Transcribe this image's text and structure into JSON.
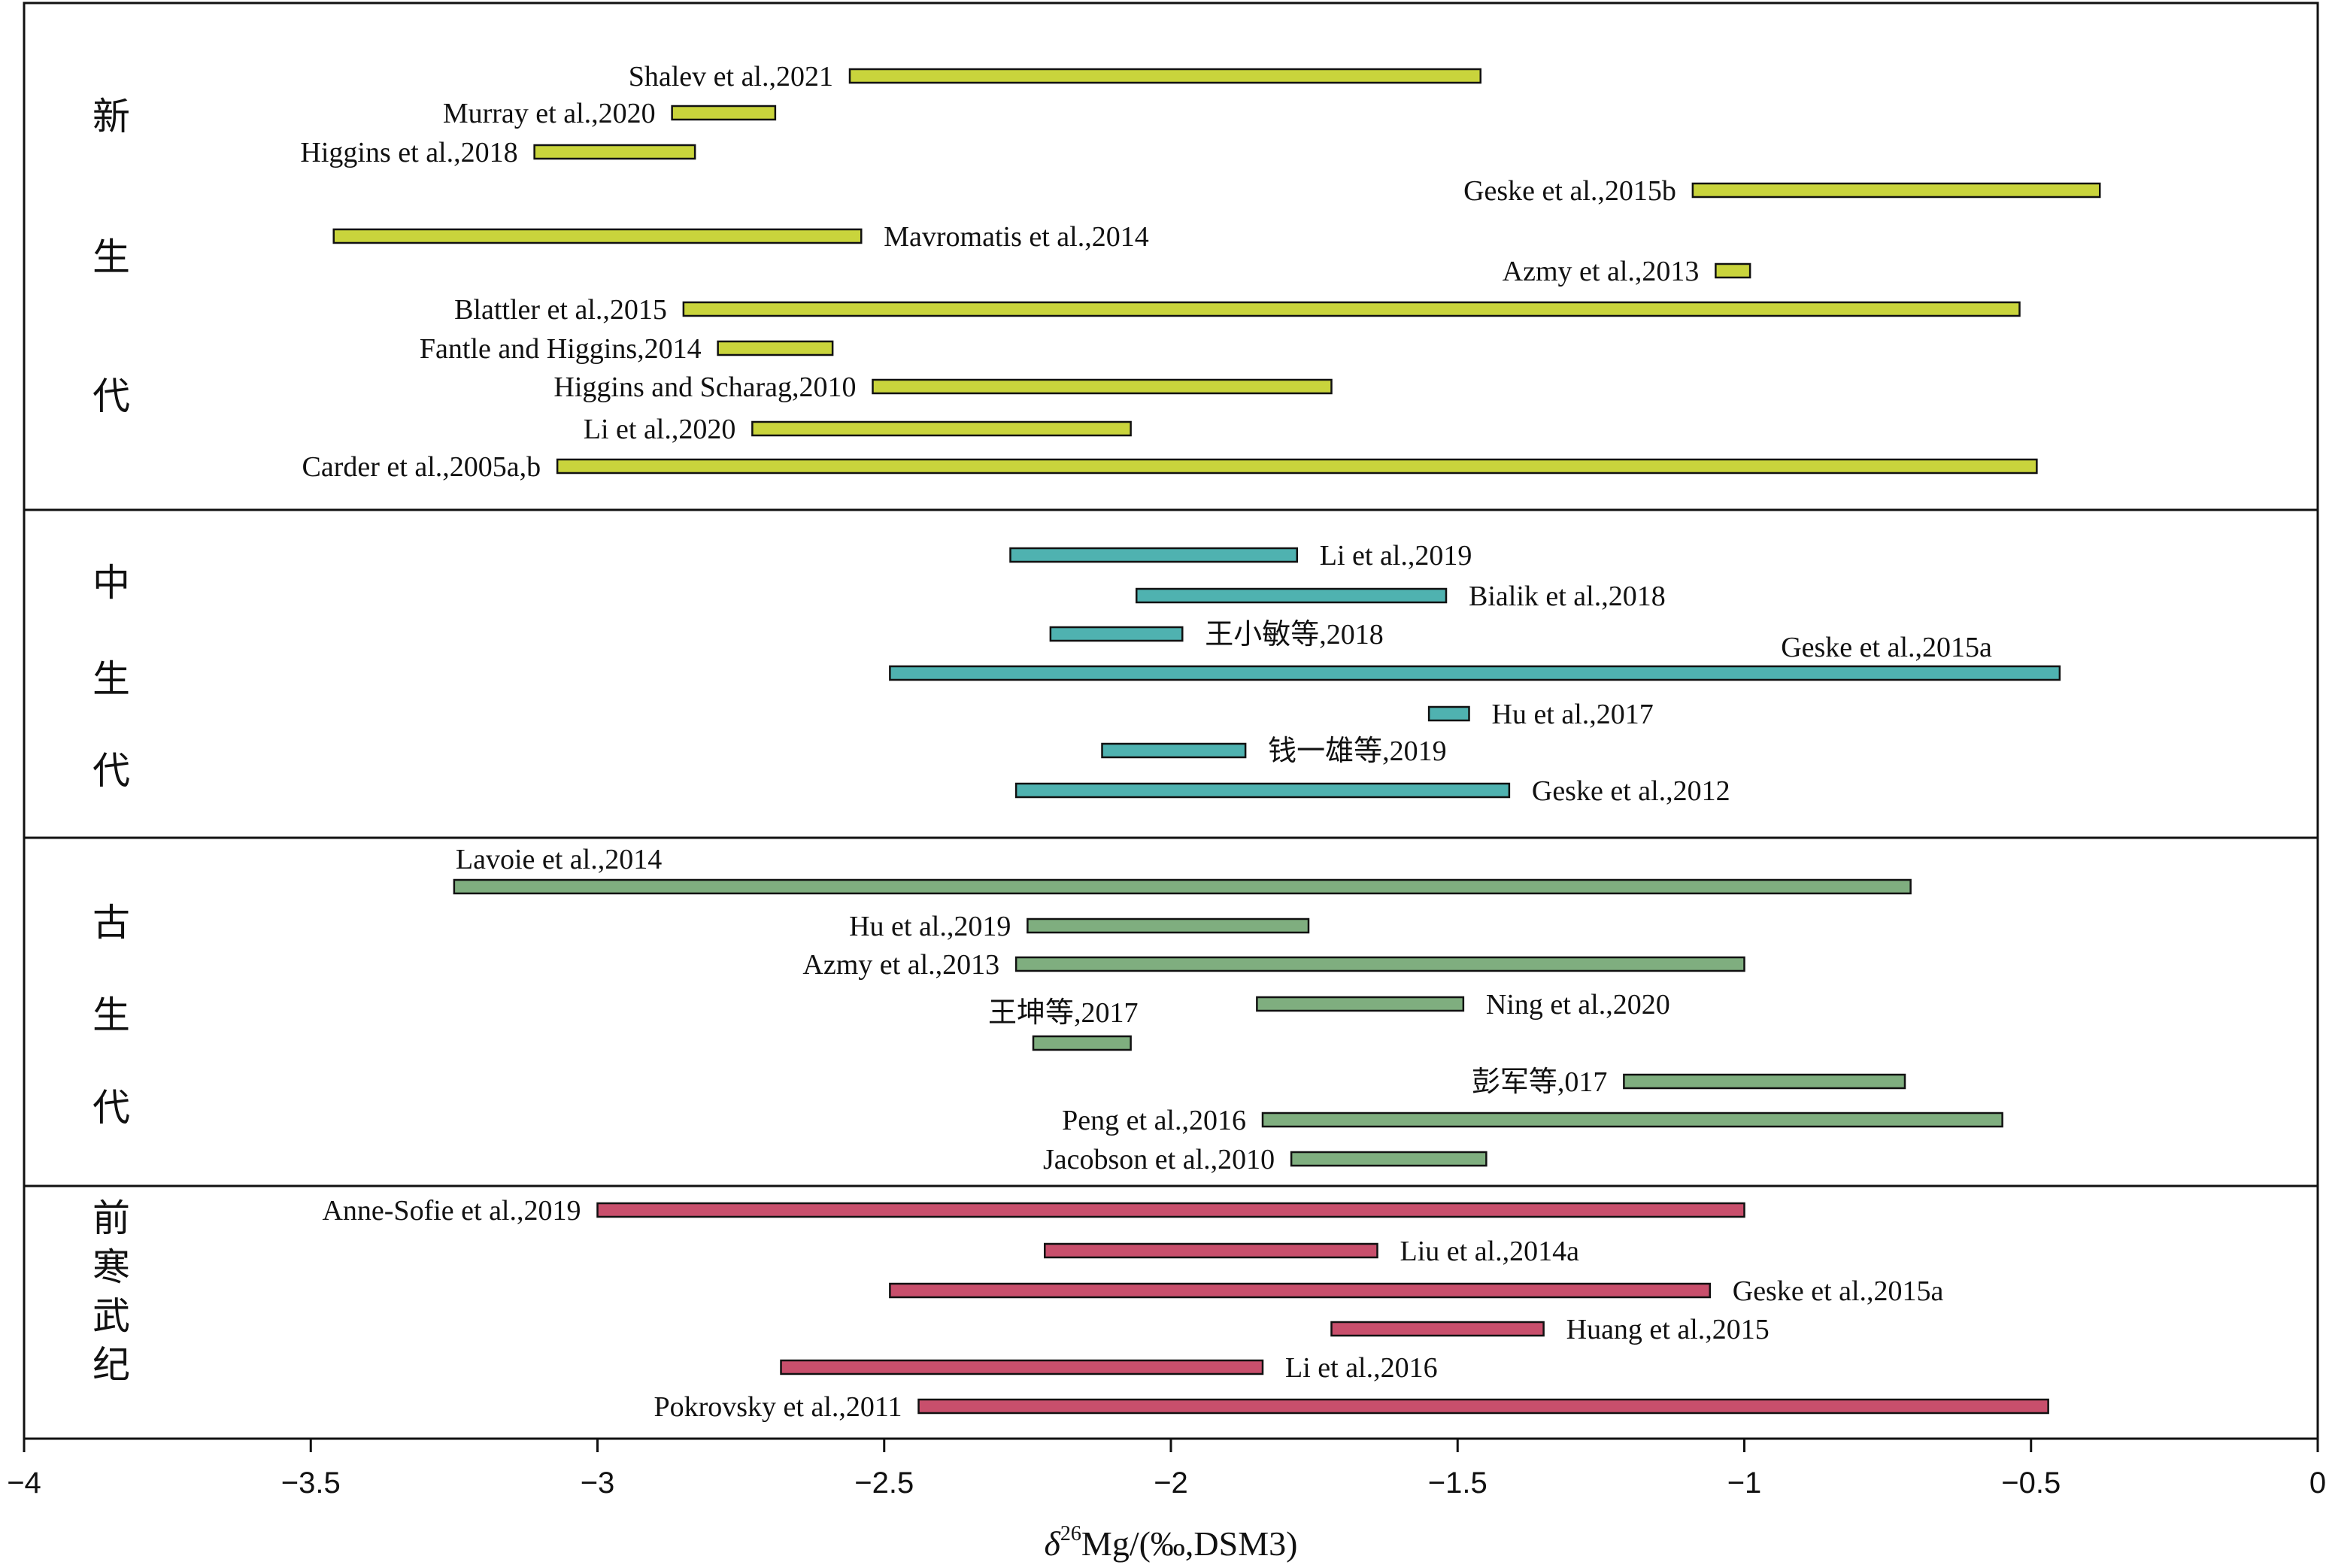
{
  "chart_data": {
    "type": "range-bar",
    "xlabel": {
      "delta": "δ",
      "superscript": "26",
      "rest": "Mg/(‰,DSM3)"
    },
    "xlim": [
      -4,
      0
    ],
    "x_ticks": [
      {
        "value": -4,
        "label": "−4"
      },
      {
        "value": -3.5,
        "label": "−3.5"
      },
      {
        "value": -3,
        "label": "−3"
      },
      {
        "value": -2.5,
        "label": "−2.5"
      },
      {
        "value": -2,
        "label": "−2"
      },
      {
        "value": -1.5,
        "label": "−1.5"
      },
      {
        "value": -1,
        "label": "−1"
      },
      {
        "value": -0.5,
        "label": "−0.5"
      },
      {
        "value": 0,
        "label": "0"
      }
    ],
    "groups": [
      {
        "era": [
          "新",
          "生",
          "代"
        ],
        "color": "#c9d43c",
        "items": [
          {
            "label": "Shalev et al.,2021",
            "min": -2.56,
            "max": -1.46,
            "label_side": "left"
          },
          {
            "label": "Murray et al.,2020",
            "min": -2.87,
            "max": -2.69,
            "label_side": "left"
          },
          {
            "label": "Higgins et al.,2018",
            "min": -3.11,
            "max": -2.83,
            "label_side": "left"
          },
          {
            "label": "Geske et al.,2015b",
            "min": -1.09,
            "max": -0.38,
            "label_side": "left"
          },
          {
            "label": "Mavromatis et al.,2014",
            "min": -3.46,
            "max": -2.54,
            "label_side": "right"
          },
          {
            "label": "Azmy et al.,2013",
            "min": -1.05,
            "max": -0.99,
            "label_side": "left"
          },
          {
            "label": "Blattler et al.,2015",
            "min": -2.85,
            "max": -0.52,
            "label_side": "left"
          },
          {
            "label": "Fantle and Higgins,2014",
            "min": -2.79,
            "max": -2.59,
            "label_side": "left"
          },
          {
            "label": "Higgins and Scharag,2010",
            "min": -2.52,
            "max": -1.72,
            "label_side": "left"
          },
          {
            "label": "Li et al.,2020",
            "min": -2.73,
            "max": -2.07,
            "label_side": "left"
          },
          {
            "label": "Carder et al.,2005a,b",
            "min": -3.07,
            "max": -0.49,
            "label_side": "left"
          }
        ]
      },
      {
        "era": [
          "中",
          "生",
          "代"
        ],
        "color": "#4fb2b0",
        "items": [
          {
            "label": "Li et al.,2019",
            "min": -2.28,
            "max": -1.78,
            "label_side": "right"
          },
          {
            "label": "Bialik et al.,2018",
            "min": -2.06,
            "max": -1.52,
            "label_side": "right"
          },
          {
            "label": "王小敏等,2018",
            "min": -2.21,
            "max": -1.98,
            "label_side": "right"
          },
          {
            "label": "Geske et al.,2015a",
            "min": -2.49,
            "max": -0.45,
            "label_side": "right-up"
          },
          {
            "label": "Hu et al.,2017",
            "min": -1.55,
            "max": -1.48,
            "label_side": "right"
          },
          {
            "label": "钱一雄等,2019",
            "min": -2.12,
            "max": -1.87,
            "label_side": "right"
          },
          {
            "label": "Geske et al.,2012",
            "min": -2.27,
            "max": -1.41,
            "label_side": "right"
          }
        ]
      },
      {
        "era": [
          "古",
          "生",
          "代"
        ],
        "color": "#7fae7f",
        "items": [
          {
            "label": "Lavoie et al.,2014",
            "min": -3.25,
            "max": -0.71,
            "label_side": "above-left"
          },
          {
            "label": "Hu et al.,2019",
            "min": -2.25,
            "max": -1.76,
            "label_side": "left"
          },
          {
            "label": "Azmy et al.,2013",
            "min": -2.27,
            "max": -1.0,
            "label_side": "left"
          },
          {
            "label": "Ning et al.,2020",
            "min": -1.85,
            "max": -1.49,
            "label_side": "right"
          },
          {
            "label": "王坤等,2017",
            "min": -2.24,
            "max": -2.07,
            "label_side": "above-left"
          },
          {
            "label": "彭军等,017",
            "min": -1.21,
            "max": -0.72,
            "label_side": "left"
          },
          {
            "label": "Peng et al.,2016",
            "min": -1.84,
            "max": -0.55,
            "label_side": "left"
          },
          {
            "label": "Jacobson et al.,2010",
            "min": -1.79,
            "max": -1.45,
            "label_side": "left"
          }
        ]
      },
      {
        "era": [
          "前",
          "寒",
          "武",
          "纪"
        ],
        "color": "#c84f6c",
        "items": [
          {
            "label": "Anne-Sofie et al.,2019",
            "min": -3.0,
            "max": -1.0,
            "label_side": "left"
          },
          {
            "label": "Liu et al.,2014a",
            "min": -2.22,
            "max": -1.64,
            "label_side": "right"
          },
          {
            "label": "Geske et al.,2015a",
            "min": -2.49,
            "max": -1.06,
            "label_side": "right"
          },
          {
            "label": "Huang et al.,2015",
            "min": -1.72,
            "max": -1.35,
            "label_side": "right"
          },
          {
            "label": "Li et al.,2016",
            "min": -2.68,
            "max": -1.84,
            "label_side": "right"
          },
          {
            "label": "Pokrovsky et al.,2011",
            "min": -2.44,
            "max": -0.47,
            "label_side": "left"
          }
        ]
      }
    ]
  }
}
